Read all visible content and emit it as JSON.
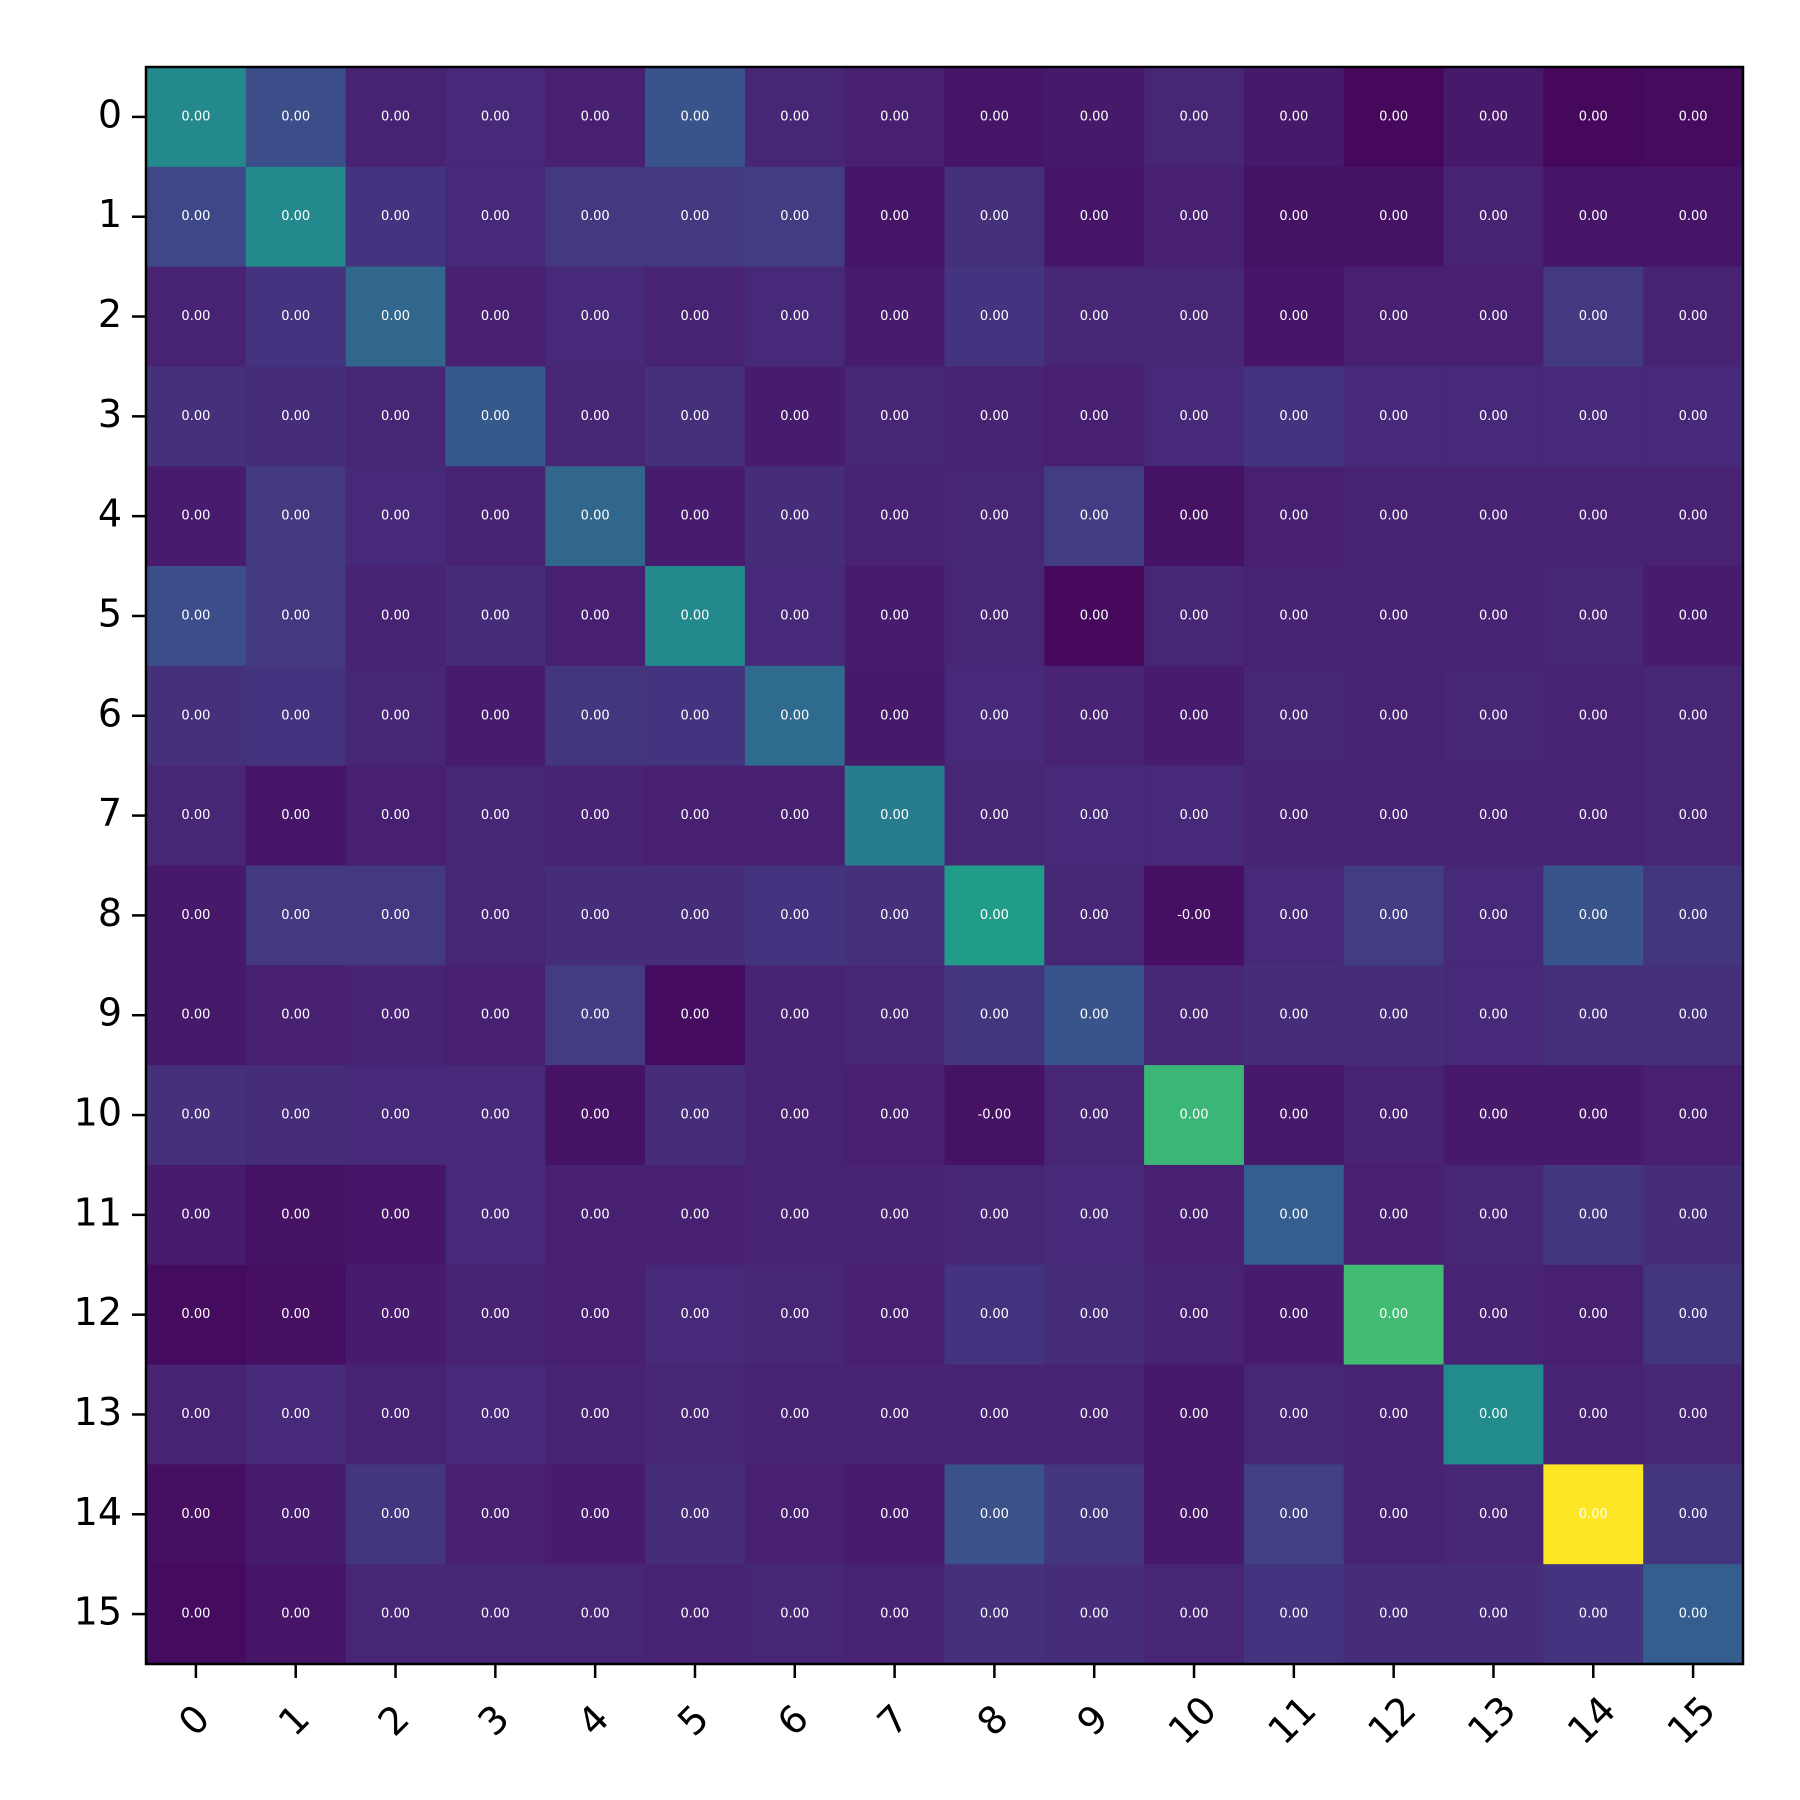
{
  "chart_data": {
    "type": "heatmap",
    "title": "",
    "xlabel": "",
    "ylabel": "",
    "x_ticks": [
      "0",
      "1",
      "2",
      "3",
      "4",
      "5",
      "6",
      "7",
      "8",
      "9",
      "10",
      "11",
      "12",
      "13",
      "14",
      "15"
    ],
    "y_ticks": [
      "0",
      "1",
      "2",
      "3",
      "4",
      "5",
      "6",
      "7",
      "8",
      "9",
      "10",
      "11",
      "12",
      "13",
      "14",
      "15"
    ],
    "colormap": "viridis",
    "colorbar": false,
    "x_tick_rotation_deg": 45,
    "intensity": [
      [
        0.47,
        0.24,
        0.1,
        0.12,
        0.09,
        0.26,
        0.11,
        0.09,
        0.06,
        0.07,
        0.11,
        0.07,
        0.02,
        0.07,
        0.02,
        0.03
      ],
      [
        0.22,
        0.47,
        0.15,
        0.12,
        0.17,
        0.17,
        0.18,
        0.06,
        0.14,
        0.06,
        0.09,
        0.05,
        0.05,
        0.1,
        0.06,
        0.06
      ],
      [
        0.1,
        0.15,
        0.33,
        0.09,
        0.12,
        0.1,
        0.12,
        0.08,
        0.15,
        0.11,
        0.11,
        0.06,
        0.09,
        0.09,
        0.17,
        0.1
      ],
      [
        0.14,
        0.13,
        0.11,
        0.28,
        0.11,
        0.14,
        0.08,
        0.11,
        0.1,
        0.09,
        0.12,
        0.15,
        0.12,
        0.12,
        0.12,
        0.12
      ],
      [
        0.08,
        0.17,
        0.12,
        0.1,
        0.33,
        0.08,
        0.13,
        0.1,
        0.11,
        0.18,
        0.05,
        0.09,
        0.1,
        0.1,
        0.1,
        0.1
      ],
      [
        0.24,
        0.17,
        0.1,
        0.13,
        0.09,
        0.47,
        0.12,
        0.08,
        0.11,
        0.02,
        0.11,
        0.1,
        0.1,
        0.1,
        0.11,
        0.08
      ],
      [
        0.14,
        0.15,
        0.11,
        0.08,
        0.16,
        0.15,
        0.35,
        0.07,
        0.12,
        0.1,
        0.08,
        0.11,
        0.1,
        0.11,
        0.1,
        0.11
      ],
      [
        0.11,
        0.06,
        0.09,
        0.11,
        0.1,
        0.09,
        0.09,
        0.42,
        0.11,
        0.12,
        0.12,
        0.1,
        0.1,
        0.1,
        0.1,
        0.11
      ],
      [
        0.07,
        0.17,
        0.17,
        0.11,
        0.13,
        0.13,
        0.15,
        0.14,
        0.55,
        0.11,
        0.04,
        0.12,
        0.18,
        0.12,
        0.26,
        0.16
      ],
      [
        0.07,
        0.09,
        0.1,
        0.09,
        0.18,
        0.03,
        0.1,
        0.11,
        0.16,
        0.26,
        0.11,
        0.13,
        0.13,
        0.12,
        0.14,
        0.14
      ],
      [
        0.14,
        0.13,
        0.12,
        0.12,
        0.05,
        0.13,
        0.1,
        0.09,
        0.05,
        0.11,
        0.67,
        0.07,
        0.1,
        0.07,
        0.07,
        0.09
      ],
      [
        0.08,
        0.05,
        0.06,
        0.12,
        0.09,
        0.09,
        0.1,
        0.1,
        0.11,
        0.12,
        0.09,
        0.3,
        0.09,
        0.11,
        0.16,
        0.13
      ],
      [
        0.03,
        0.04,
        0.08,
        0.1,
        0.09,
        0.12,
        0.11,
        0.09,
        0.15,
        0.13,
        0.1,
        0.08,
        0.69,
        0.1,
        0.09,
        0.16
      ],
      [
        0.1,
        0.12,
        0.1,
        0.12,
        0.1,
        0.11,
        0.1,
        0.1,
        0.1,
        0.1,
        0.07,
        0.11,
        0.1,
        0.48,
        0.1,
        0.11
      ],
      [
        0.04,
        0.08,
        0.16,
        0.09,
        0.08,
        0.13,
        0.09,
        0.08,
        0.25,
        0.16,
        0.07,
        0.19,
        0.1,
        0.11,
        1.0,
        0.16
      ],
      [
        0.03,
        0.06,
        0.11,
        0.11,
        0.11,
        0.1,
        0.11,
        0.1,
        0.14,
        0.13,
        0.11,
        0.15,
        0.13,
        0.13,
        0.15,
        0.3
      ]
    ],
    "values": [
      [
        "0.00",
        "0.00",
        "0.00",
        "0.00",
        "0.00",
        "0.00",
        "0.00",
        "0.00",
        "0.00",
        "0.00",
        "0.00",
        "0.00",
        "0.00",
        "0.00",
        "0.00",
        "0.00"
      ],
      [
        "0.00",
        "0.00",
        "0.00",
        "0.00",
        "0.00",
        "0.00",
        "0.00",
        "0.00",
        "0.00",
        "0.00",
        "0.00",
        "0.00",
        "0.00",
        "0.00",
        "0.00",
        "0.00"
      ],
      [
        "0.00",
        "0.00",
        "0.00",
        "0.00",
        "0.00",
        "0.00",
        "0.00",
        "0.00",
        "0.00",
        "0.00",
        "0.00",
        "0.00",
        "0.00",
        "0.00",
        "0.00",
        "0.00"
      ],
      [
        "0.00",
        "0.00",
        "0.00",
        "0.00",
        "0.00",
        "0.00",
        "0.00",
        "0.00",
        "0.00",
        "0.00",
        "0.00",
        "0.00",
        "0.00",
        "0.00",
        "0.00",
        "0.00"
      ],
      [
        "0.00",
        "0.00",
        "0.00",
        "0.00",
        "0.00",
        "0.00",
        "0.00",
        "0.00",
        "0.00",
        "0.00",
        "0.00",
        "0.00",
        "0.00",
        "0.00",
        "0.00",
        "0.00"
      ],
      [
        "0.00",
        "0.00",
        "0.00",
        "0.00",
        "0.00",
        "0.00",
        "0.00",
        "0.00",
        "0.00",
        "0.00",
        "0.00",
        "0.00",
        "0.00",
        "0.00",
        "0.00",
        "0.00"
      ],
      [
        "0.00",
        "0.00",
        "0.00",
        "0.00",
        "0.00",
        "0.00",
        "0.00",
        "0.00",
        "0.00",
        "0.00",
        "0.00",
        "0.00",
        "0.00",
        "0.00",
        "0.00",
        "0.00"
      ],
      [
        "0.00",
        "0.00",
        "0.00",
        "0.00",
        "0.00",
        "0.00",
        "0.00",
        "0.00",
        "0.00",
        "0.00",
        "0.00",
        "0.00",
        "0.00",
        "0.00",
        "0.00",
        "0.00"
      ],
      [
        "0.00",
        "0.00",
        "0.00",
        "0.00",
        "0.00",
        "0.00",
        "0.00",
        "0.00",
        "0.00",
        "0.00",
        "-0.00",
        "0.00",
        "0.00",
        "0.00",
        "0.00",
        "0.00"
      ],
      [
        "0.00",
        "0.00",
        "0.00",
        "0.00",
        "0.00",
        "0.00",
        "0.00",
        "0.00",
        "0.00",
        "0.00",
        "0.00",
        "0.00",
        "0.00",
        "0.00",
        "0.00",
        "0.00"
      ],
      [
        "0.00",
        "0.00",
        "0.00",
        "0.00",
        "0.00",
        "0.00",
        "0.00",
        "0.00",
        "-0.00",
        "0.00",
        "0.00",
        "0.00",
        "0.00",
        "0.00",
        "0.00",
        "0.00"
      ],
      [
        "0.00",
        "0.00",
        "0.00",
        "0.00",
        "0.00",
        "0.00",
        "0.00",
        "0.00",
        "0.00",
        "0.00",
        "0.00",
        "0.00",
        "0.00",
        "0.00",
        "0.00",
        "0.00"
      ],
      [
        "0.00",
        "0.00",
        "0.00",
        "0.00",
        "0.00",
        "0.00",
        "0.00",
        "0.00",
        "0.00",
        "0.00",
        "0.00",
        "0.00",
        "0.00",
        "0.00",
        "0.00",
        "0.00"
      ],
      [
        "0.00",
        "0.00",
        "0.00",
        "0.00",
        "0.00",
        "0.00",
        "0.00",
        "0.00",
        "0.00",
        "0.00",
        "0.00",
        "0.00",
        "0.00",
        "0.00",
        "0.00",
        "0.00"
      ],
      [
        "0.00",
        "0.00",
        "0.00",
        "0.00",
        "0.00",
        "0.00",
        "0.00",
        "0.00",
        "0.00",
        "0.00",
        "0.00",
        "0.00",
        "0.00",
        "0.00",
        "0.00",
        "0.00"
      ],
      [
        "0.00",
        "0.00",
        "0.00",
        "0.00",
        "0.00",
        "0.00",
        "0.00",
        "0.00",
        "0.00",
        "0.00",
        "0.00",
        "0.00",
        "0.00",
        "0.00",
        "0.00",
        "0.00"
      ]
    ]
  }
}
